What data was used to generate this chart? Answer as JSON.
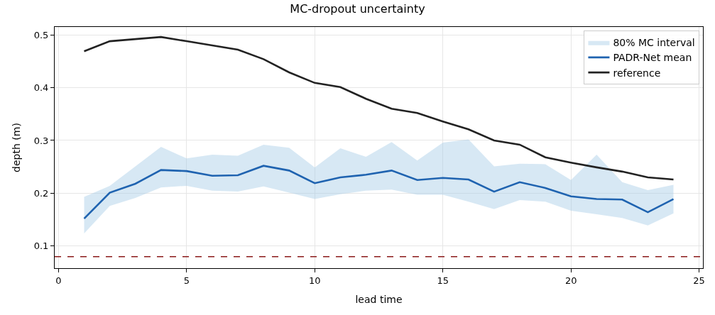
{
  "chart_data": {
    "type": "line",
    "title": "MC-dropout uncertainty",
    "xlabel": "lead time",
    "ylabel": "depth (m)",
    "x": [
      1,
      2,
      3,
      4,
      5,
      6,
      7,
      8,
      9,
      10,
      11,
      12,
      13,
      14,
      15,
      16,
      17,
      18,
      19,
      20,
      21,
      22,
      23,
      24
    ],
    "series": [
      {
        "name": "80% MC interval",
        "type": "area",
        "color": "#a6cbe6",
        "values": [
          null,
          null,
          null,
          null,
          null,
          null,
          null,
          null,
          null,
          null,
          null,
          null,
          null,
          null,
          null,
          null,
          null,
          null,
          null,
          null,
          null,
          null,
          null,
          null
        ],
        "lower": [
          0.124,
          0.176,
          0.191,
          0.211,
          0.214,
          0.205,
          0.203,
          0.213,
          0.201,
          0.189,
          0.198,
          0.205,
          0.207,
          0.197,
          0.197,
          0.184,
          0.17,
          0.187,
          0.184,
          0.167,
          0.16,
          0.153,
          0.139,
          0.162
        ],
        "upper": [
          0.193,
          0.214,
          0.251,
          0.288,
          0.266,
          0.273,
          0.271,
          0.292,
          0.286,
          0.249,
          0.285,
          0.269,
          0.297,
          0.262,
          0.296,
          0.302,
          0.251,
          0.256,
          0.255,
          0.225,
          0.273,
          0.221,
          0.206,
          0.216
        ]
      },
      {
        "name": "PADR-Net mean",
        "color": "#1f63b0",
        "values": [
          0.152,
          0.201,
          0.218,
          0.244,
          0.242,
          0.233,
          0.234,
          0.252,
          0.243,
          0.219,
          0.23,
          0.235,
          0.243,
          0.225,
          0.229,
          0.226,
          0.203,
          0.221,
          0.21,
          0.194,
          0.189,
          0.188,
          0.164,
          0.189
        ]
      },
      {
        "name": "reference",
        "color": "#222222",
        "values": [
          0.469,
          0.488,
          0.492,
          0.496,
          0.488,
          0.48,
          0.472,
          0.454,
          0.429,
          0.409,
          0.401,
          0.379,
          0.36,
          0.352,
          0.336,
          0.321,
          0.3,
          0.292,
          0.268,
          0.258,
          0.249,
          0.241,
          0.23,
          0.226
        ]
      }
    ],
    "ref_lines": [
      {
        "axis": "y",
        "value": 0.08,
        "color": "#8b1a1a",
        "line_style": "dashed"
      }
    ],
    "xlim": [
      -0.15,
      25.15
    ],
    "xticks": [
      0,
      5,
      10,
      15,
      20,
      25
    ],
    "ylim": [
      0.058,
      0.515
    ],
    "yticks": [
      0.1,
      0.2,
      0.3,
      0.4,
      0.5
    ],
    "grid": true,
    "legend": "top right",
    "line_style": "solid",
    "marker": "none"
  }
}
